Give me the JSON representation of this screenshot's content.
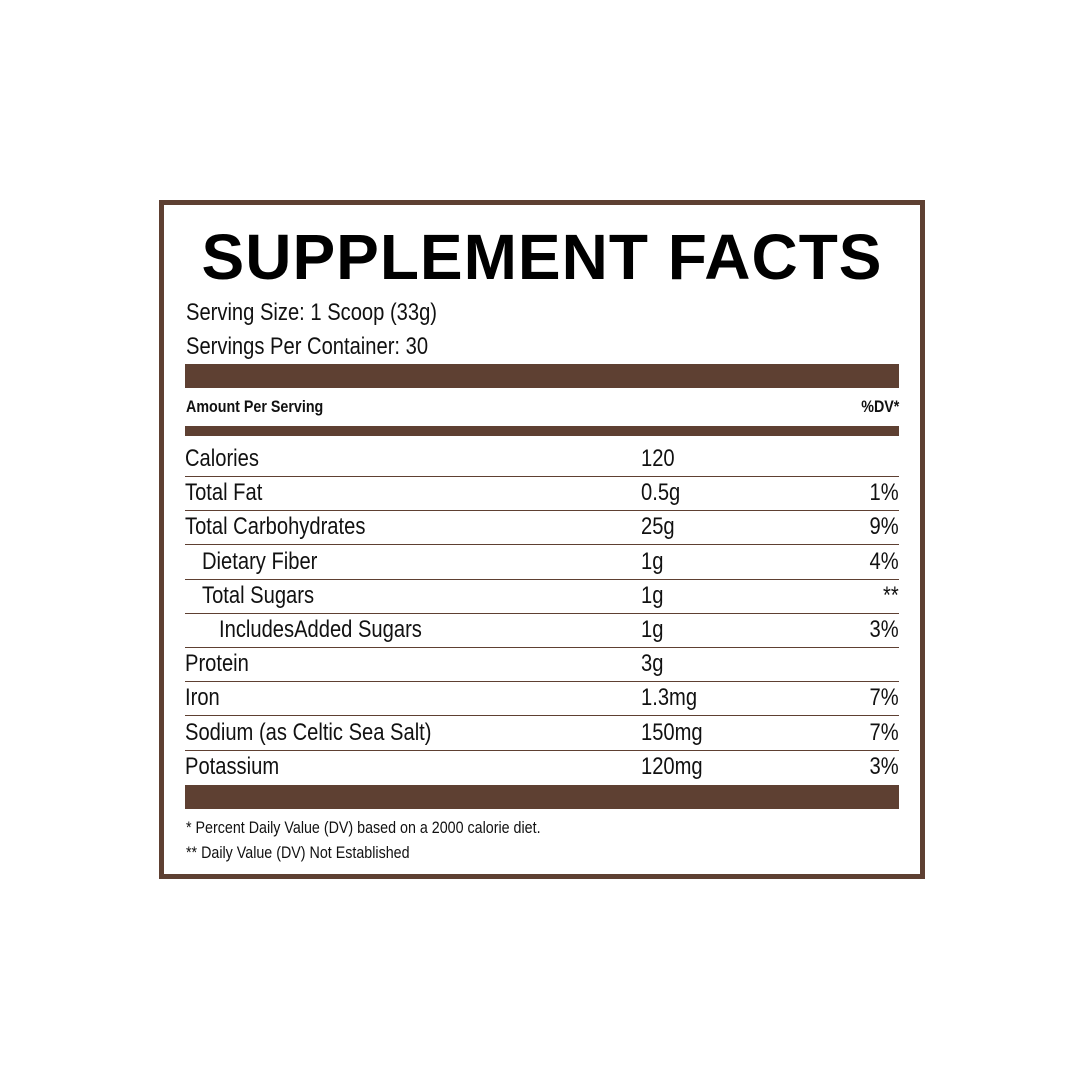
{
  "title": "SUPPLEMENT FACTS",
  "serving_size": "Serving Size: 1 Scoop (33g)",
  "servings_per_container": "Servings Per Container: 30",
  "header": {
    "amount_label": "Amount Per Serving",
    "dv_label": "%DV*"
  },
  "rows": [
    {
      "name": "Calories",
      "amount": "120",
      "dv": "",
      "indent": 0
    },
    {
      "name": "Total Fat",
      "amount": "0.5g",
      "dv": "1%",
      "indent": 0
    },
    {
      "name": "Total Carbohydrates",
      "amount": "25g",
      "dv": "9%",
      "indent": 0
    },
    {
      "name": "Dietary Fiber",
      "amount": "1g",
      "dv": "4%",
      "indent": 1
    },
    {
      "name": "Total Sugars",
      "amount": "1g",
      "dv": "**",
      "indent": 1
    },
    {
      "name": "IncludesAdded Sugars",
      "amount": "1g",
      "dv": "3%",
      "indent": 2
    },
    {
      "name": "Protein",
      "amount": "3g",
      "dv": "",
      "indent": 0
    },
    {
      "name": "Iron",
      "amount": "1.3mg",
      "dv": "7%",
      "indent": 0
    },
    {
      "name": "Sodium (as Celtic Sea Salt)",
      "amount": "150mg",
      "dv": "7%",
      "indent": 0
    },
    {
      "name": "Potassium",
      "amount": "120mg",
      "dv": "3%",
      "indent": 0
    }
  ],
  "footnotes": [
    "* Percent Daily Value (DV) based on a 2000 calorie diet.",
    "** Daily Value (DV) Not Established"
  ],
  "colors": {
    "accent": "#5e4032",
    "text": "#111111"
  }
}
